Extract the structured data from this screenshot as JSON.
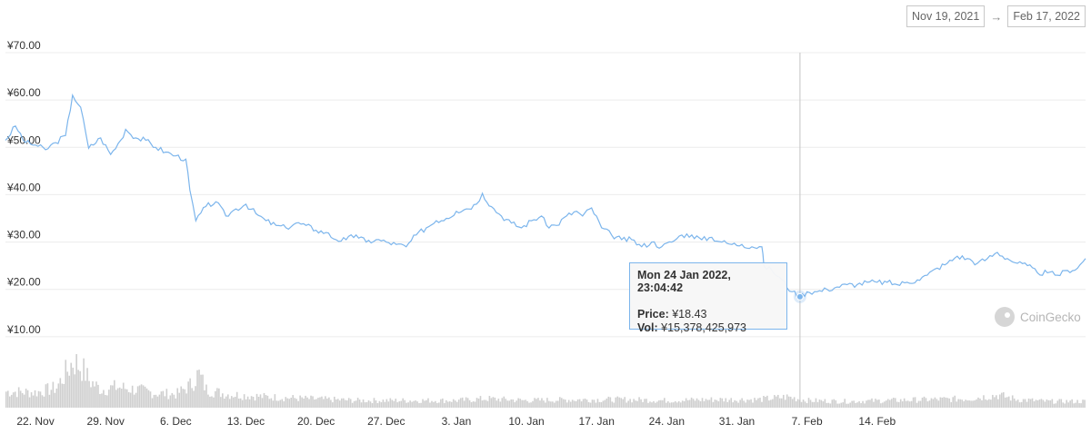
{
  "range": {
    "from": "Nov 19, 2021",
    "arrow": "→",
    "to": "Feb 17, 2022"
  },
  "watermark": "CoinGecko",
  "tooltip": {
    "title": "Mon 24 Jan 2022, 23:04:42",
    "price_label": "Price:",
    "price_value": "¥18.43",
    "vol_label": "Vol:",
    "vol_value": "¥15,378,425,973"
  },
  "colors": {
    "line": "#7cb5ec",
    "volume": "#cfcfcf",
    "grid": "#ececec",
    "crosshair": "#c4c4c4"
  },
  "chart_data": {
    "type": "line",
    "x_start": "19 Nov 2021",
    "x_end": "17 Feb 2022",
    "ylim": [
      0,
      70
    ],
    "yticks": [
      "¥10.00",
      "¥20.00",
      "¥30.00",
      "¥40.00",
      "¥50.00",
      "¥60.00",
      "¥70.00"
    ],
    "ytick_values": [
      10,
      20,
      30,
      40,
      50,
      60,
      70
    ],
    "xticks": [
      "22. Nov",
      "29. Nov",
      "6. Dec",
      "13. Dec",
      "20. Dec",
      "27. Dec",
      "3. Jan",
      "10. Jan",
      "17. Jan",
      "24. Jan",
      "31. Jan",
      "7. Feb",
      "14. Feb"
    ],
    "xtick_days": [
      3,
      10,
      17,
      24,
      31,
      38,
      45,
      52,
      59,
      66,
      73,
      80,
      87
    ],
    "series": [
      {
        "values": [
          [
            0,
            51.5
          ],
          [
            1,
            54.5
          ],
          [
            2,
            51.0
          ],
          [
            3,
            50.5
          ],
          [
            4,
            49.5
          ],
          [
            5,
            51.0
          ],
          [
            6,
            52.5
          ],
          [
            6.7,
            61.0
          ],
          [
            7.5,
            58.5
          ],
          [
            8.3,
            49.8
          ],
          [
            9.5,
            52.0
          ],
          [
            10.5,
            48.5
          ],
          [
            11.5,
            51.5
          ],
          [
            12,
            53.8
          ],
          [
            13,
            52.0
          ],
          [
            14,
            51.5
          ],
          [
            15,
            50.0
          ],
          [
            16,
            49.0
          ],
          [
            17,
            48.2
          ],
          [
            18,
            47.5
          ],
          [
            18.4,
            41.0
          ],
          [
            19,
            34.5
          ],
          [
            20,
            37.5
          ],
          [
            21,
            38.5
          ],
          [
            22,
            35.5
          ],
          [
            23,
            37.0
          ],
          [
            24,
            38.0
          ],
          [
            25,
            36.0
          ],
          [
            26,
            34.5
          ],
          [
            27,
            33.5
          ],
          [
            28,
            33.0
          ],
          [
            29,
            34.0
          ],
          [
            30,
            33.5
          ],
          [
            31,
            32.5
          ],
          [
            32,
            32.0
          ],
          [
            33,
            30.5
          ],
          [
            34,
            30.5
          ],
          [
            35,
            31.5
          ],
          [
            36,
            30.0
          ],
          [
            37,
            30.5
          ],
          [
            38,
            30.0
          ],
          [
            39,
            29.5
          ],
          [
            40,
            29.0
          ],
          [
            41,
            31.5
          ],
          [
            42,
            33.0
          ],
          [
            43,
            34.5
          ],
          [
            44,
            35.0
          ],
          [
            45,
            36.5
          ],
          [
            46,
            37.0
          ],
          [
            47,
            38.0
          ],
          [
            47.6,
            40.3
          ],
          [
            48.5,
            37.5
          ],
          [
            49.5,
            35.5
          ],
          [
            50.5,
            34.0
          ],
          [
            51.5,
            33.0
          ],
          [
            52.5,
            34.5
          ],
          [
            53.5,
            35.5
          ],
          [
            54,
            33.5
          ],
          [
            55,
            33.5
          ],
          [
            56,
            35.5
          ],
          [
            57,
            36.5
          ],
          [
            57.6,
            35.5
          ],
          [
            58.5,
            37.2
          ],
          [
            59.5,
            33.0
          ],
          [
            60.5,
            31.5
          ],
          [
            61.5,
            30.5
          ],
          [
            62.5,
            30.5
          ],
          [
            63.5,
            29.0
          ],
          [
            64.5,
            30.0
          ],
          [
            65.5,
            29.0
          ],
          [
            66.5,
            30.0
          ],
          [
            67.5,
            31.5
          ],
          [
            68.5,
            31.5
          ],
          [
            69.5,
            30.5
          ],
          [
            70.5,
            31.0
          ],
          [
            71.5,
            30.0
          ],
          [
            72.5,
            29.5
          ],
          [
            73.5,
            29.5
          ],
          [
            74.5,
            29.0
          ],
          [
            75.5,
            29.0
          ],
          [
            75.7,
            25.0
          ],
          [
            76.5,
            24.0
          ],
          [
            77.5,
            22.0
          ],
          [
            78.5,
            19.5
          ],
          [
            79.3,
            18.4
          ],
          [
            80,
            19.5
          ],
          [
            81,
            19.5
          ],
          [
            82,
            20.0
          ],
          [
            83,
            20.5
          ],
          [
            84,
            21.0
          ],
          [
            85,
            21.0
          ],
          [
            86,
            21.5
          ],
          [
            87,
            21.5
          ],
          [
            88,
            21.5
          ],
          [
            89,
            21.0
          ],
          [
            90,
            21.5
          ],
          [
            91,
            22.0
          ],
          [
            92,
            23.0
          ],
          [
            93,
            24.5
          ],
          [
            94,
            25.5
          ],
          [
            95,
            27.0
          ],
          [
            96,
            26.5
          ],
          [
            97,
            25.5
          ],
          [
            98,
            26.5
          ],
          [
            99,
            27.8
          ],
          [
            100,
            26.5
          ],
          [
            101,
            25.5
          ],
          [
            102,
            25.0
          ],
          [
            103,
            23.5
          ],
          [
            104,
            23.5
          ],
          [
            105,
            23.0
          ],
          [
            106,
            24.0
          ],
          [
            107,
            24.5
          ],
          [
            107.8,
            26.5
          ]
        ]
      }
    ],
    "volume_values": [
      [
        0,
        1.8
      ],
      [
        3,
        1.7
      ],
      [
        5,
        2.2
      ],
      [
        6.7,
        5.2
      ],
      [
        7.6,
        4.4
      ],
      [
        8.3,
        3.0
      ],
      [
        9.5,
        2.0
      ],
      [
        11,
        2.3
      ],
      [
        13,
        2.0
      ],
      [
        15,
        1.6
      ],
      [
        17,
        1.5
      ],
      [
        18.5,
        2.6
      ],
      [
        19.2,
        3.8
      ],
      [
        20,
        2.0
      ],
      [
        22,
        1.5
      ],
      [
        26,
        1.2
      ],
      [
        30,
        1.0
      ],
      [
        35,
        0.8
      ],
      [
        40,
        0.8
      ],
      [
        45,
        0.8
      ],
      [
        48,
        1.0
      ],
      [
        52,
        0.8
      ],
      [
        57,
        0.9
      ],
      [
        62,
        0.9
      ],
      [
        66,
        0.8
      ],
      [
        70,
        0.9
      ],
      [
        75,
        0.9
      ],
      [
        78,
        1.2
      ],
      [
        80,
        0.8
      ],
      [
        84,
        0.7
      ],
      [
        88,
        0.8
      ],
      [
        92,
        0.9
      ],
      [
        96,
        1.0
      ],
      [
        99,
        1.4
      ],
      [
        101,
        0.9
      ],
      [
        104,
        0.7
      ],
      [
        107.8,
        0.7
      ]
    ],
    "crosshair_day": 79.3,
    "highlight": {
      "day": 79.3,
      "value": 18.43
    }
  }
}
